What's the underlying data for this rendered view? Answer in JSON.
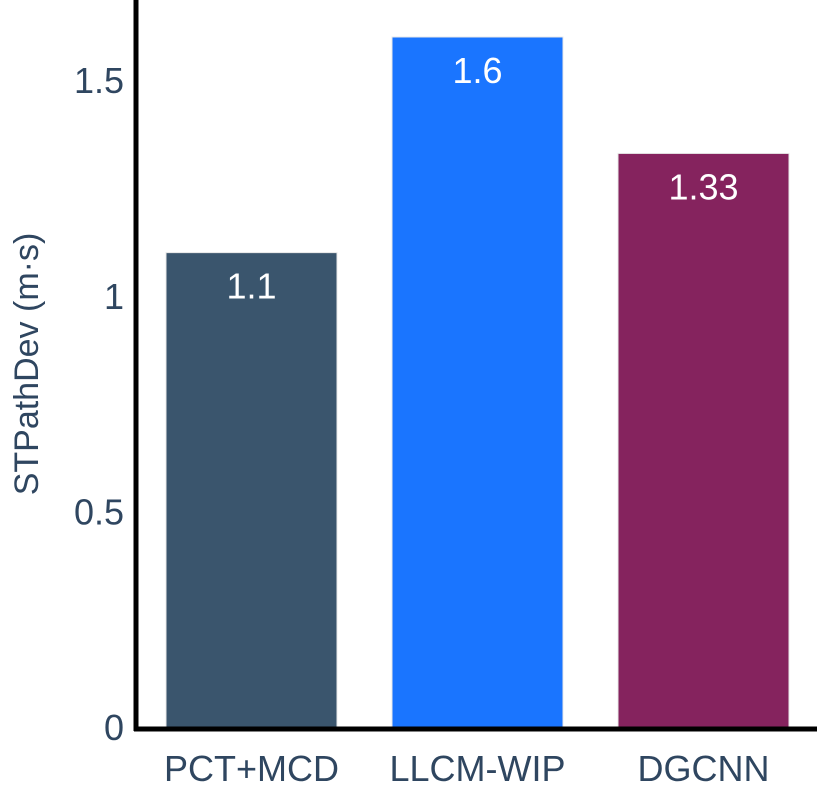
{
  "chart_data": {
    "type": "bar",
    "title": "",
    "xlabel": "",
    "ylabel": "STPathDev (m·s)",
    "categories": [
      "PCT+MCD",
      "LLCM-WIP",
      "DGCNN"
    ],
    "values": [
      1.1,
      1.6,
      1.33
    ],
    "data_labels": [
      "1.1",
      "1.6",
      "1.33"
    ],
    "colors": [
      "#3a556d",
      "#1a75ff",
      "#85235e"
    ],
    "ylim": [
      0,
      1.6
    ],
    "yticks": [
      0,
      0.5,
      1,
      1.5
    ],
    "ytick_labels": [
      "0",
      "0.5",
      "1",
      "1.5"
    ],
    "grid": false,
    "legend": "none"
  }
}
